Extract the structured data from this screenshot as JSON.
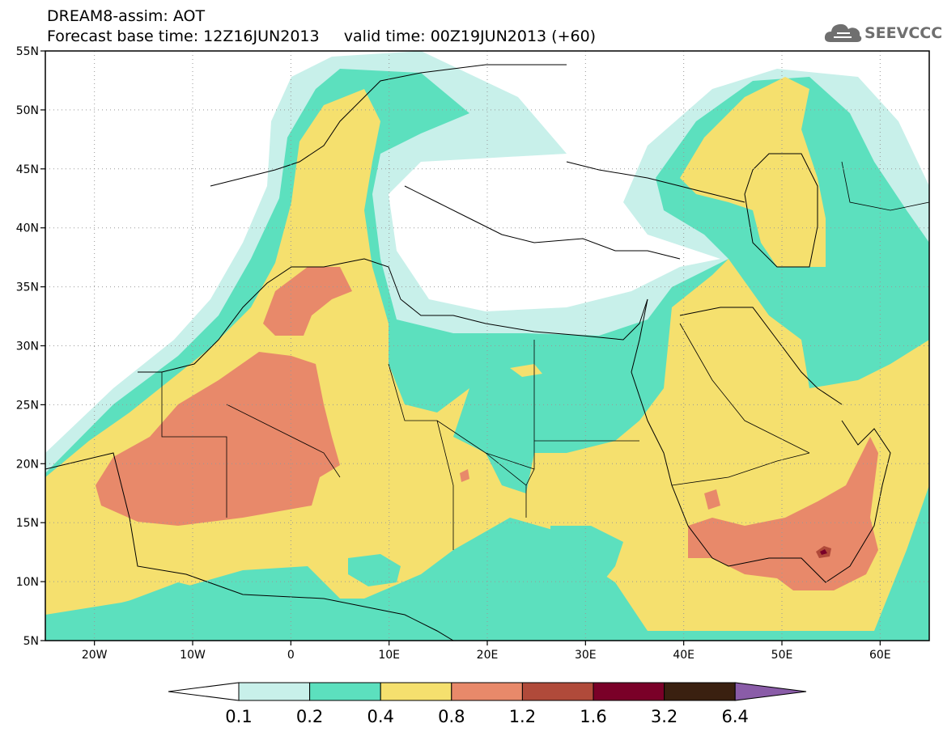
{
  "title": {
    "line1": "DREAM8-assim: AOT",
    "line2": "Forecast base time: 12Z16JUN2013     valid time: 00Z19JUN2013 (+60)"
  },
  "logo": {
    "text": "SEEVCCC",
    "icon": "cloud-icon",
    "color": "#6f6f6f"
  },
  "map": {
    "lon_range": [
      -25,
      65
    ],
    "lat_range": [
      5,
      55
    ],
    "lat_ticks": [
      "55N",
      "50N",
      "45N",
      "40N",
      "35N",
      "30N",
      "25N",
      "20N",
      "15N",
      "10N",
      "5N"
    ],
    "lon_ticks": [
      "20W",
      "10W",
      "0",
      "10E",
      "20E",
      "30E",
      "40E",
      "50E",
      "60E"
    ],
    "gridlines": "dotted",
    "field": "AOT"
  },
  "colorbar": {
    "labels": [
      "0.1",
      "0.2",
      "0.4",
      "0.8",
      "1.2",
      "1.6",
      "3.2",
      "6.4"
    ],
    "colors": {
      "below": "#ffffff",
      "c1": "#c8f0ea",
      "c2": "#5ce0be",
      "c3": "#f5e06e",
      "c4": "#e8896a",
      "c5": "#b04a3a",
      "c6": "#7a0028",
      "c7": "#3a2010",
      "above": "#8a5ca8"
    }
  }
}
